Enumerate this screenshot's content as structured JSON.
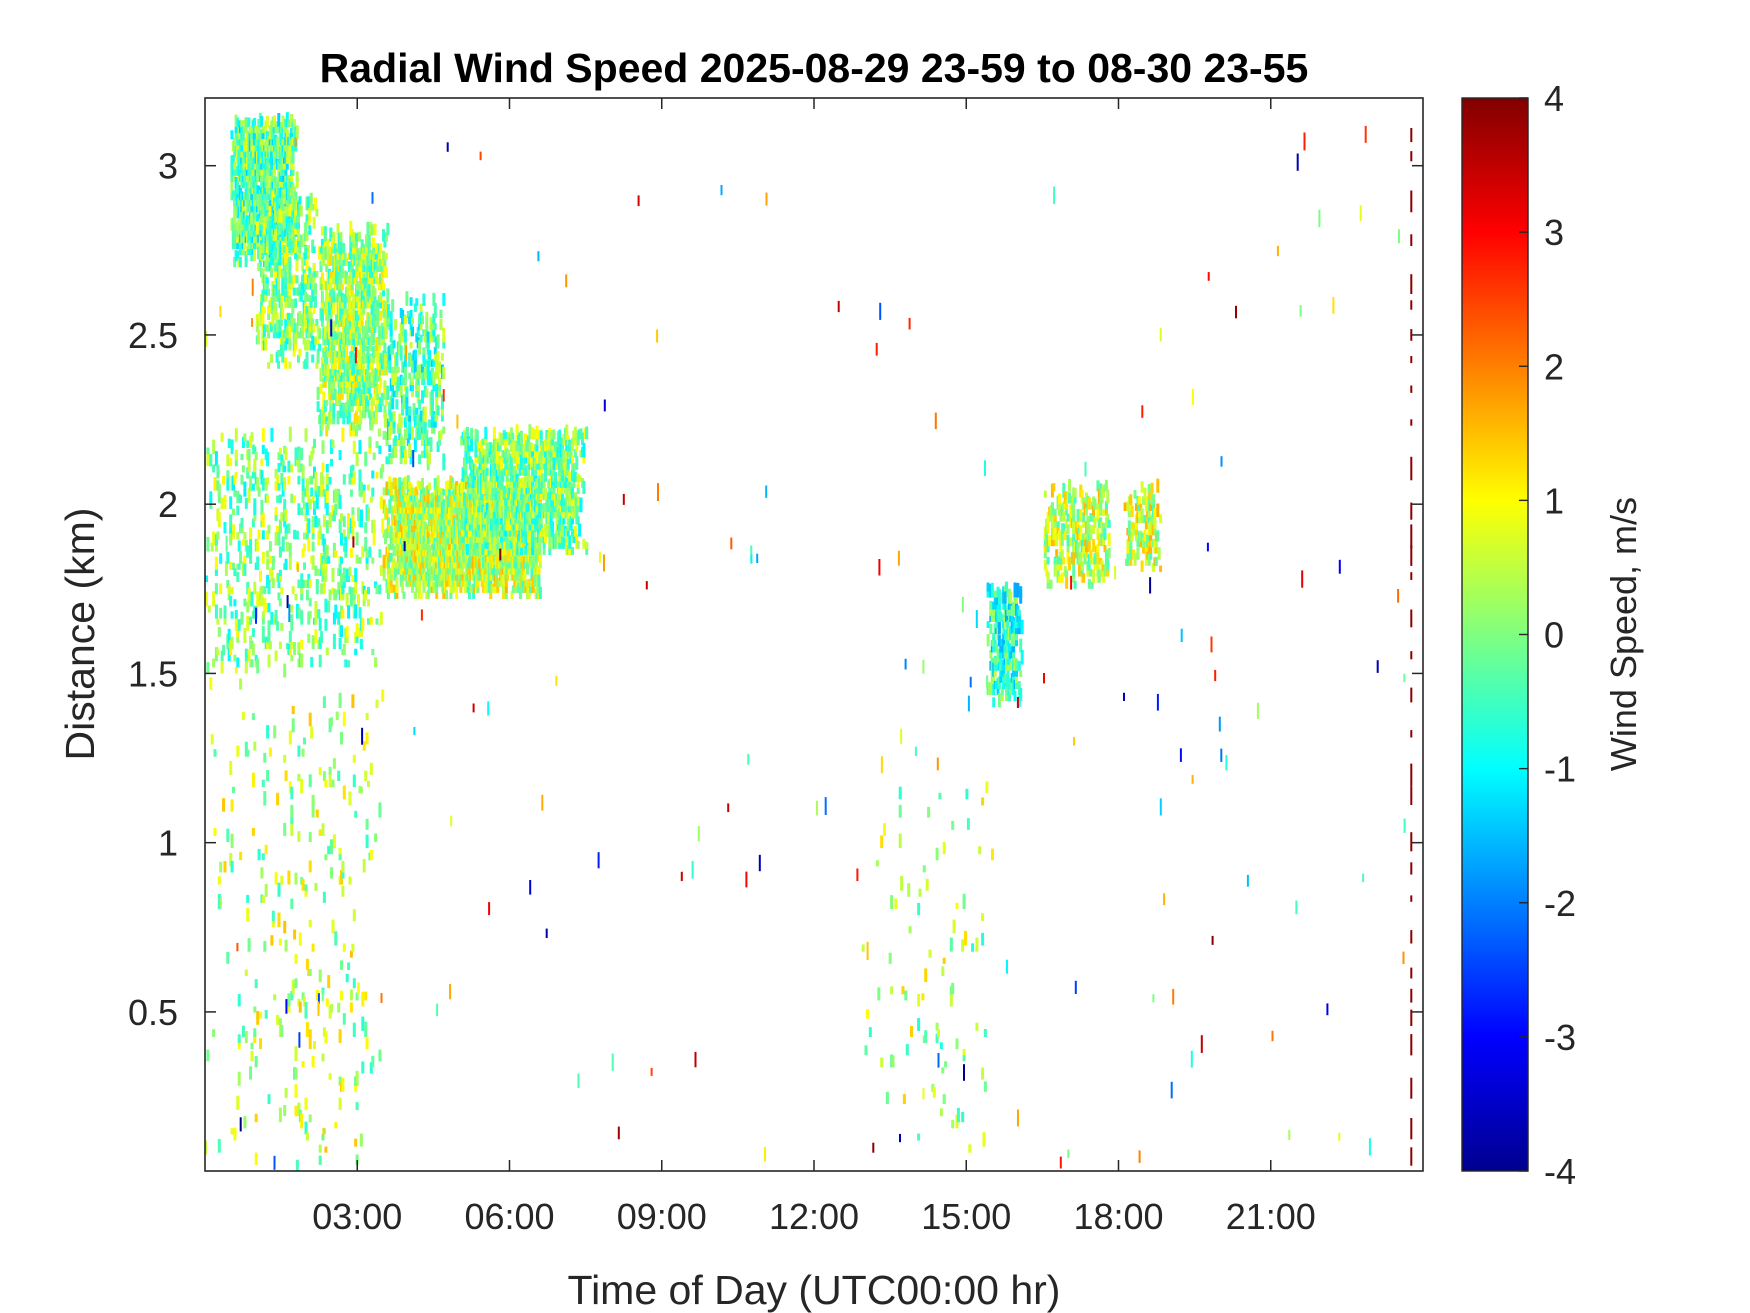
{
  "chart_data": {
    "type": "heatmap",
    "title": "Radial Wind Speed 2025-08-29 23-59 to 08-30 23-55",
    "xlabel": "Time of Day (UTC00:00 hr)",
    "ylabel": "Distance (km)",
    "xlim": [
      0,
      24
    ],
    "ylim": [
      0.03,
      3.2
    ],
    "x_ticks": [
      3,
      6,
      9,
      12,
      15,
      18,
      21
    ],
    "x_tick_labels": [
      "03:00",
      "06:00",
      "09:00",
      "12:00",
      "15:00",
      "18:00",
      "21:00"
    ],
    "y_ticks": [
      0.5,
      1,
      1.5,
      2,
      2.5,
      3
    ],
    "y_tick_labels": [
      "0.5",
      "1",
      "1.5",
      "2",
      "2.5",
      "3"
    ],
    "colorbar": {
      "label": "Wind Speed, m/s",
      "range": [
        -4,
        4
      ],
      "ticks": [
        4,
        3,
        2,
        1,
        0,
        -1,
        -2,
        -3,
        -4
      ],
      "tick_labels": [
        "4",
        "3",
        "2",
        "1",
        "0",
        "-1",
        "-2",
        "-3",
        "-4"
      ],
      "colormap": "jet"
    },
    "grid": false,
    "regions": [
      {
        "t0": 0.5,
        "t1": 1.8,
        "d0": 2.7,
        "d1": 3.12,
        "v_mean": -0.3,
        "density": 0.8
      },
      {
        "t0": 1.0,
        "t1": 2.2,
        "d0": 2.4,
        "d1": 2.9,
        "v_mean": 0.0,
        "density": 0.35
      },
      {
        "t0": 2.2,
        "t1": 3.6,
        "d0": 2.2,
        "d1": 2.8,
        "v_mean": 0.2,
        "density": 0.55
      },
      {
        "t0": 3.5,
        "t1": 4.7,
        "d0": 2.1,
        "d1": 2.6,
        "v_mean": -0.3,
        "density": 0.3
      },
      {
        "t0": 3.5,
        "t1": 6.6,
        "d0": 1.72,
        "d1": 2.05,
        "v_mean": 0.5,
        "density": 0.85
      },
      {
        "t0": 5.0,
        "t1": 7.5,
        "d0": 1.85,
        "d1": 2.2,
        "v_mean": 0.0,
        "density": 0.6
      },
      {
        "t0": 0.0,
        "t1": 3.5,
        "d0": 1.5,
        "d1": 2.2,
        "v_mean": 0.0,
        "density": 0.15
      },
      {
        "t0": 0.0,
        "t1": 3.5,
        "d0": 0.03,
        "d1": 1.5,
        "v_mean": 0.4,
        "density": 0.03
      },
      {
        "t0": 15.4,
        "t1": 16.1,
        "d0": 1.4,
        "d1": 1.75,
        "v_mean": -0.6,
        "density": 0.5
      },
      {
        "t0": 16.5,
        "t1": 17.8,
        "d0": 1.75,
        "d1": 2.05,
        "v_mean": 0.5,
        "density": 0.35
      },
      {
        "t0": 18.1,
        "t1": 18.8,
        "d0": 1.8,
        "d1": 2.05,
        "v_mean": 0.6,
        "density": 0.3
      },
      {
        "t0": 12.8,
        "t1": 15.5,
        "d0": 0.03,
        "d1": 1.2,
        "v_mean": 0.3,
        "density": 0.015
      }
    ]
  }
}
